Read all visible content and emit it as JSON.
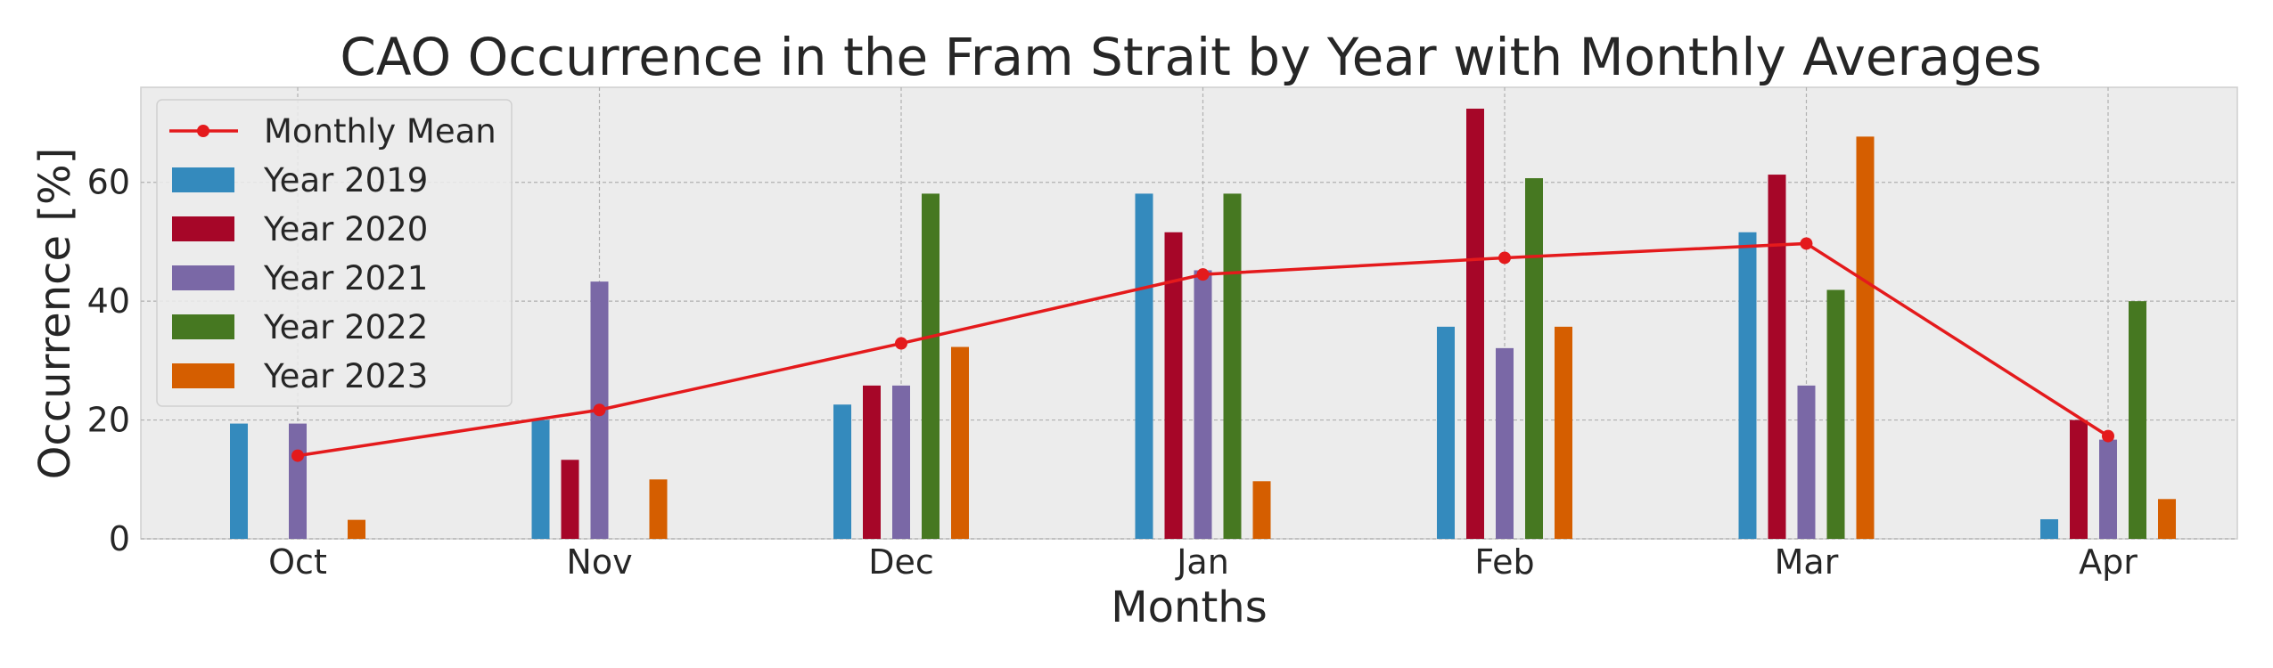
{
  "chart_data": {
    "type": "bar",
    "title": "CAO Occurrence in the Fram Strait by Year with Monthly Averages",
    "xlabel": "Months",
    "ylabel": "Occurrence [%]",
    "ylim": [
      0,
      76
    ],
    "yticks": [
      0,
      20,
      40,
      60
    ],
    "grid": true,
    "legend_position": "top-left",
    "categories": [
      "Oct",
      "Nov",
      "Dec",
      "Jan",
      "Feb",
      "Mar",
      "Apr"
    ],
    "series": [
      {
        "name": "Year 2019",
        "color": "#348ABD",
        "values": [
          19.4,
          20.0,
          22.6,
          58.1,
          35.7,
          51.6,
          3.3
        ]
      },
      {
        "name": "Year 2020",
        "color": "#A60628",
        "values": [
          null,
          13.3,
          25.8,
          51.6,
          72.4,
          61.3,
          20.0
        ]
      },
      {
        "name": "Year 2021",
        "color": "#7A68A6",
        "values": [
          19.4,
          43.3,
          25.8,
          45.2,
          32.1,
          25.8,
          16.7
        ]
      },
      {
        "name": "Year 2022",
        "color": "#467821",
        "values": [
          null,
          null,
          58.1,
          58.1,
          60.7,
          41.9,
          40.0
        ]
      },
      {
        "name": "Year 2023",
        "color": "#D55E00",
        "values": [
          3.2,
          10.0,
          32.3,
          9.7,
          35.7,
          67.7,
          6.7
        ]
      }
    ],
    "line": {
      "name": "Monthly Mean",
      "color": "#E41A1C",
      "values": [
        14.0,
        21.7,
        32.9,
        44.5,
        47.3,
        49.7,
        17.3
      ]
    }
  }
}
